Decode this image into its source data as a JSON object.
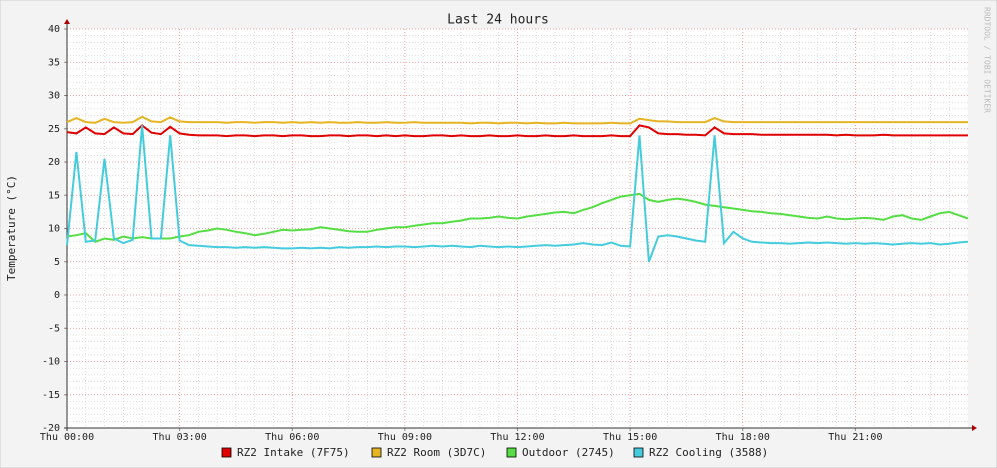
{
  "chart_data": {
    "type": "line",
    "title": "Last 24 hours",
    "ylabel": "Temperature (°C)",
    "watermark": "RRDTOOL / TOBI OETIKER",
    "xlim": [
      0,
      24
    ],
    "xticks": [
      {
        "value": 0,
        "label": "Thu 00:00"
      },
      {
        "value": 3,
        "label": "Thu 03:00"
      },
      {
        "value": 6,
        "label": "Thu 06:00"
      },
      {
        "value": 9,
        "label": "Thu 09:00"
      },
      {
        "value": 12,
        "label": "Thu 12:00"
      },
      {
        "value": 15,
        "label": "Thu 15:00"
      },
      {
        "value": 18,
        "label": "Thu 18:00"
      },
      {
        "value": 21,
        "label": "Thu 21:00"
      }
    ],
    "ylim": [
      -20,
      40
    ],
    "yticks": [
      -20,
      -15,
      -10,
      -5,
      0,
      5,
      10,
      15,
      20,
      25,
      30,
      35,
      40
    ],
    "grid": true,
    "x": [
      0,
      0.25,
      0.5,
      0.75,
      1,
      1.25,
      1.5,
      1.75,
      2,
      2.25,
      2.5,
      2.75,
      3,
      3.25,
      3.5,
      3.75,
      4,
      4.25,
      4.5,
      4.75,
      5,
      5.25,
      5.5,
      5.75,
      6,
      6.25,
      6.5,
      6.75,
      7,
      7.25,
      7.5,
      7.75,
      8,
      8.25,
      8.5,
      8.75,
      9,
      9.25,
      9.5,
      9.75,
      10,
      10.25,
      10.5,
      10.75,
      11,
      11.25,
      11.5,
      11.75,
      12,
      12.25,
      12.5,
      12.75,
      13,
      13.25,
      13.5,
      13.75,
      14,
      14.25,
      14.5,
      14.75,
      15,
      15.25,
      15.5,
      15.75,
      16,
      16.25,
      16.5,
      16.75,
      17,
      17.25,
      17.5,
      17.75,
      18,
      18.25,
      18.5,
      18.75,
      19,
      19.25,
      19.5,
      19.75,
      20,
      20.25,
      20.5,
      20.75,
      21,
      21.25,
      21.5,
      21.75,
      22,
      22.25,
      22.5,
      22.75,
      23,
      23.25,
      23.5,
      23.75,
      24
    ],
    "series": [
      {
        "name": "RZ2 Intake (7F75)",
        "color": "#e00000",
        "values": [
          24.5,
          24.3,
          25.2,
          24.3,
          24.2,
          25.2,
          24.3,
          24.2,
          25.5,
          24.4,
          24.2,
          25.3,
          24.3,
          24.1,
          24.0,
          24.0,
          24.0,
          23.9,
          24.0,
          24.0,
          23.9,
          24.0,
          24.0,
          23.9,
          24.0,
          24.0,
          23.9,
          23.9,
          24.0,
          24.0,
          23.9,
          24.0,
          24.0,
          23.9,
          24.0,
          23.9,
          24.0,
          23.9,
          23.9,
          24.0,
          24.0,
          23.9,
          24.0,
          23.9,
          23.9,
          24.0,
          23.9,
          23.9,
          24.0,
          23.9,
          23.9,
          24.0,
          23.9,
          23.9,
          24.0,
          23.9,
          23.9,
          23.9,
          24.0,
          23.9,
          23.9,
          25.5,
          25.2,
          24.3,
          24.2,
          24.2,
          24.1,
          24.1,
          24.0,
          25.2,
          24.3,
          24.2,
          24.2,
          24.2,
          24.1,
          24.1,
          24.1,
          24.1,
          24.1,
          24.1,
          24.1,
          24.1,
          24.0,
          24.1,
          24.0,
          24.0,
          24.0,
          24.1,
          24.0,
          24.0,
          24.0,
          24.0,
          24.0,
          24.0,
          24.0,
          24.0,
          24.0
        ]
      },
      {
        "name": "RZ2 Room (3D7C)",
        "color": "#e6b422",
        "values": [
          26.0,
          26.6,
          26.0,
          25.9,
          26.5,
          26.0,
          25.9,
          26.0,
          26.8,
          26.1,
          26.0,
          26.7,
          26.1,
          26.0,
          26.0,
          26.0,
          26.0,
          25.9,
          26.0,
          26.0,
          25.9,
          26.0,
          26.0,
          25.9,
          26.0,
          25.9,
          26.0,
          25.9,
          26.0,
          25.9,
          25.9,
          26.0,
          25.9,
          25.9,
          26.0,
          25.9,
          25.9,
          26.0,
          25.9,
          25.9,
          25.9,
          25.9,
          25.9,
          25.8,
          25.9,
          25.9,
          25.8,
          25.9,
          25.9,
          25.8,
          25.9,
          25.8,
          25.8,
          25.9,
          25.8,
          25.8,
          25.8,
          25.8,
          25.9,
          25.8,
          25.8,
          26.5,
          26.3,
          26.1,
          26.1,
          26.0,
          26.0,
          26.0,
          26.0,
          26.6,
          26.1,
          26.0,
          26.0,
          26.0,
          26.0,
          26.0,
          26.0,
          26.0,
          26.0,
          26.0,
          26.0,
          26.0,
          26.0,
          26.0,
          26.0,
          26.0,
          26.0,
          26.0,
          26.0,
          26.0,
          26.0,
          26.0,
          26.0,
          26.0,
          26.0,
          26.0,
          26.0
        ]
      },
      {
        "name": "Outdoor (2745)",
        "color": "#55dd44",
        "values": [
          8.8,
          9.0,
          9.3,
          8.0,
          8.5,
          8.3,
          8.8,
          8.5,
          8.7,
          8.5,
          8.5,
          8.5,
          8.8,
          9.0,
          9.5,
          9.7,
          10.0,
          9.8,
          9.5,
          9.3,
          9.0,
          9.2,
          9.5,
          9.8,
          9.7,
          9.8,
          9.9,
          10.2,
          10.0,
          9.8,
          9.6,
          9.5,
          9.5,
          9.8,
          10.0,
          10.2,
          10.2,
          10.4,
          10.6,
          10.8,
          10.8,
          11.0,
          11.2,
          11.5,
          11.5,
          11.6,
          11.8,
          11.6,
          11.5,
          11.8,
          12.0,
          12.2,
          12.4,
          12.5,
          12.3,
          12.8,
          13.2,
          13.8,
          14.3,
          14.8,
          15.0,
          15.2,
          14.3,
          14.0,
          14.3,
          14.5,
          14.3,
          14.0,
          13.6,
          13.4,
          13.2,
          13.0,
          12.8,
          12.6,
          12.5,
          12.3,
          12.2,
          12.0,
          11.8,
          11.6,
          11.5,
          11.8,
          11.5,
          11.4,
          11.5,
          11.6,
          11.5,
          11.3,
          11.8,
          12.0,
          11.5,
          11.3,
          11.8,
          12.3,
          12.5,
          12.0,
          11.5
        ]
      },
      {
        "name": "RZ2 Cooling (3588)",
        "color": "#44ccdd",
        "values": [
          7.5,
          21.5,
          8.0,
          8.2,
          20.5,
          8.5,
          7.8,
          8.3,
          25.5,
          8.5,
          8.5,
          24.0,
          8.2,
          7.5,
          7.4,
          7.3,
          7.2,
          7.2,
          7.1,
          7.2,
          7.1,
          7.2,
          7.1,
          7.0,
          7.0,
          7.1,
          7.0,
          7.1,
          7.0,
          7.2,
          7.1,
          7.2,
          7.2,
          7.3,
          7.2,
          7.3,
          7.3,
          7.2,
          7.3,
          7.4,
          7.3,
          7.4,
          7.3,
          7.2,
          7.4,
          7.3,
          7.2,
          7.3,
          7.2,
          7.3,
          7.4,
          7.5,
          7.4,
          7.5,
          7.6,
          7.8,
          7.6,
          7.5,
          7.9,
          7.4,
          7.3,
          24.0,
          5.0,
          8.8,
          9.0,
          8.8,
          8.5,
          8.2,
          8.0,
          24.0,
          7.8,
          9.5,
          8.5,
          8.0,
          7.9,
          7.8,
          7.8,
          7.7,
          7.8,
          7.9,
          7.8,
          7.9,
          7.8,
          7.7,
          7.8,
          7.7,
          7.8,
          7.7,
          7.6,
          7.7,
          7.8,
          7.7,
          7.8,
          7.6,
          7.7,
          7.9,
          8.0
        ]
      }
    ]
  }
}
